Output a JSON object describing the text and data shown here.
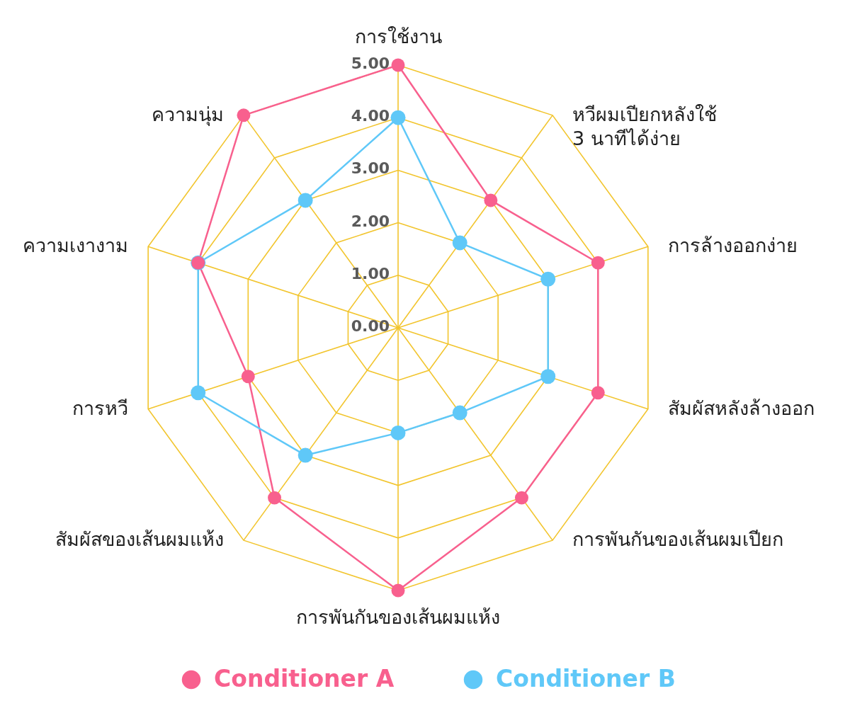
{
  "chart_data": {
    "type": "radar",
    "categories": [
      "การใช้งาน",
      "หวีผมเปียกหลังใช้\n3 นาทีได้ง่าย",
      "การล้างออกง่าย",
      "สัมผัสหลังล้างออก",
      "การพันกันของเส้นผมเปียก",
      "การพันกันของเส้นผมแห้ง",
      "สัมผัสของเส้นผมแห้ง",
      "การหวี",
      "ความเงางาม",
      "ความนุ่ม"
    ],
    "series": [
      {
        "name": "Conditioner A",
        "color": "#f8608e",
        "values": [
          5,
          3,
          4,
          4,
          4,
          5,
          4,
          3,
          4,
          5
        ]
      },
      {
        "name": "Conditioner B",
        "color": "#5fc8f8",
        "values": [
          4,
          2,
          3,
          3,
          2,
          2,
          3,
          4,
          4,
          3
        ]
      }
    ],
    "ylim": [
      0,
      5
    ],
    "yticks": [
      {
        "value": 0,
        "label": "0.00"
      },
      {
        "value": 1,
        "label": "1.00"
      },
      {
        "value": 2,
        "label": "2.00"
      },
      {
        "value": 3,
        "label": "3.00"
      },
      {
        "value": 4,
        "label": "4.00"
      },
      {
        "value": 5,
        "label": "5.00"
      }
    ],
    "grid": true,
    "legend": "bottom",
    "marker": "circle",
    "line_style": "solid"
  }
}
